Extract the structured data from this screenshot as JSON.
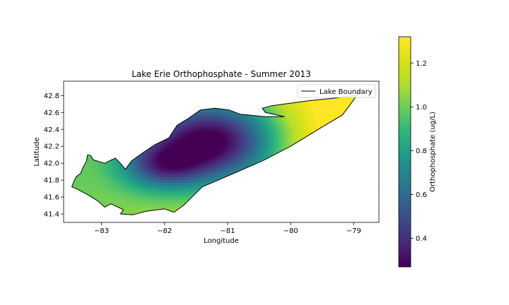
{
  "chart_data": {
    "type": "heatmap",
    "title": "Lake Erie Orthophosphate - Summer 2013",
    "xlabel": "Longitude",
    "ylabel": "Latitude",
    "xlim": [
      -83.6,
      -78.6
    ],
    "ylim": [
      41.3,
      42.97
    ],
    "x_ticks": [
      -83,
      -82,
      -81,
      -80,
      -79
    ],
    "y_ticks": [
      41.4,
      41.6,
      41.8,
      42.0,
      42.2,
      42.4,
      42.6,
      42.8
    ],
    "legend": {
      "position": "upper-right",
      "entries": [
        "Lake Boundary"
      ],
      "line_color": "#000000"
    },
    "colorbar": {
      "label": "Orthophosphate (ug/L)",
      "colormap": "viridis",
      "range": [
        0.27,
        1.32
      ],
      "ticks": [
        0.4,
        0.6,
        0.8,
        1.0,
        1.2
      ]
    },
    "field": {
      "base": 1.3,
      "slope_per_degree_lon": 0.13,
      "min_center": [
        -81.25,
        42.26
      ],
      "depressions": [
        {
          "center": [
            -81.25,
            42.26
          ],
          "amplitude": 0.9,
          "sigma_lon": 0.75,
          "sigma_lat": 0.35
        },
        {
          "center": [
            -82.05,
            41.97
          ],
          "amplitude": 0.45,
          "sigma_lon": 0.45,
          "sigma_lat": 0.2
        }
      ]
    },
    "lake_boundary": [
      [
        -83.47,
        41.72
      ],
      [
        -83.44,
        41.78
      ],
      [
        -83.4,
        41.84
      ],
      [
        -83.33,
        41.88
      ],
      [
        -83.3,
        41.94
      ],
      [
        -83.24,
        42.02
      ],
      [
        -83.22,
        42.1
      ],
      [
        -83.17,
        42.09
      ],
      [
        -83.13,
        42.04
      ],
      [
        -82.95,
        42.0
      ],
      [
        -82.78,
        42.06
      ],
      [
        -82.7,
        42.0
      ],
      [
        -82.62,
        41.93
      ],
      [
        -82.52,
        42.03
      ],
      [
        -82.35,
        42.12
      ],
      [
        -82.15,
        42.22
      ],
      [
        -81.93,
        42.3
      ],
      [
        -81.8,
        42.45
      ],
      [
        -81.62,
        42.53
      ],
      [
        -81.43,
        42.63
      ],
      [
        -81.2,
        42.65
      ],
      [
        -80.98,
        42.63
      ],
      [
        -80.8,
        42.58
      ],
      [
        -80.4,
        42.55
      ],
      [
        -80.1,
        42.55
      ],
      [
        -80.4,
        42.6
      ],
      [
        -80.45,
        42.65
      ],
      [
        -80.3,
        42.68
      ],
      [
        -79.7,
        42.74
      ],
      [
        -79.3,
        42.77
      ],
      [
        -79.0,
        42.8
      ],
      [
        -78.88,
        42.87
      ],
      [
        -79.18,
        42.57
      ],
      [
        -79.52,
        42.42
      ],
      [
        -80.0,
        42.2
      ],
      [
        -80.44,
        42.03
      ],
      [
        -80.9,
        41.88
      ],
      [
        -81.4,
        41.72
      ],
      [
        -81.7,
        41.5
      ],
      [
        -81.85,
        41.42
      ],
      [
        -82.0,
        41.46
      ],
      [
        -82.3,
        41.43
      ],
      [
        -82.5,
        41.39
      ],
      [
        -82.7,
        41.4
      ],
      [
        -82.65,
        41.45
      ],
      [
        -82.85,
        41.52
      ],
      [
        -82.95,
        41.48
      ],
      [
        -83.05,
        41.55
      ],
      [
        -83.2,
        41.62
      ],
      [
        -83.4,
        41.7
      ],
      [
        -83.47,
        41.72
      ]
    ]
  }
}
